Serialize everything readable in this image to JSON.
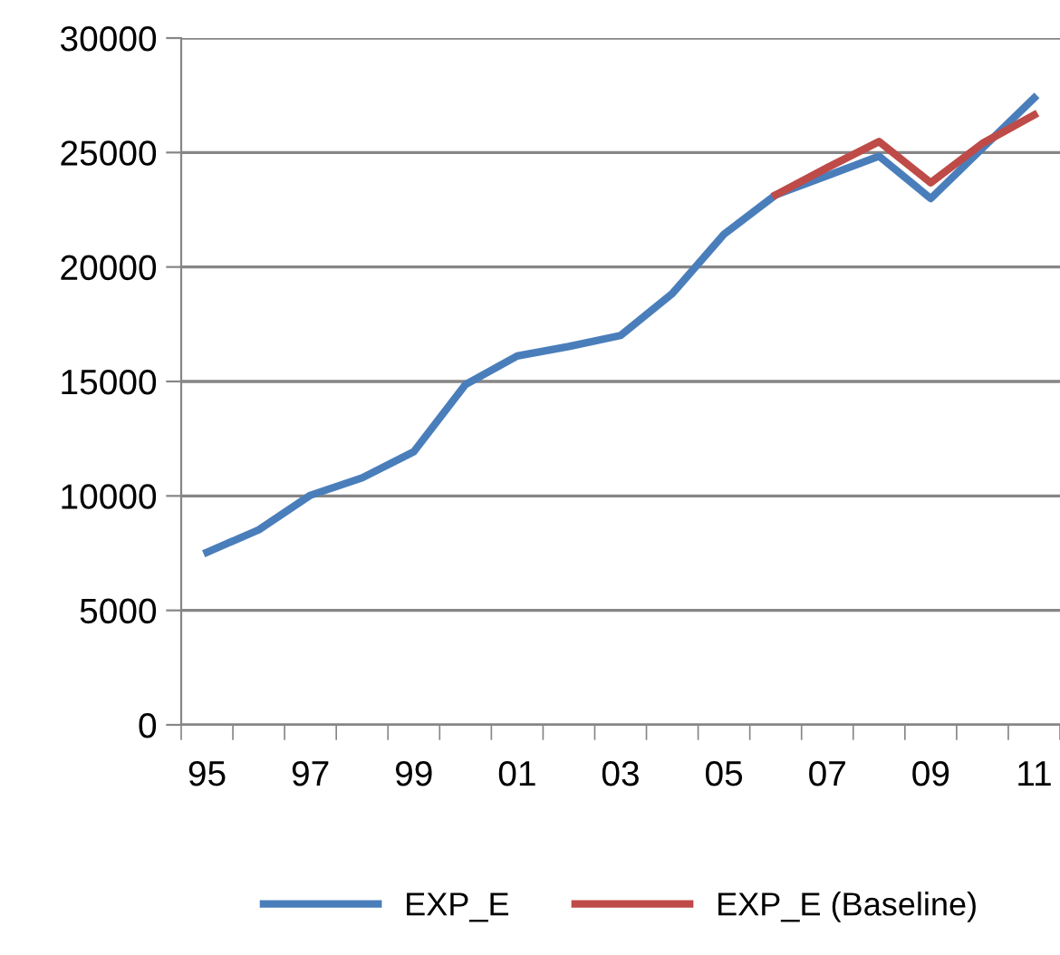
{
  "chart_data": {
    "type": "line",
    "categories": [
      "95",
      null,
      "97",
      null,
      "99",
      null,
      "01",
      null,
      "03",
      null,
      "05",
      null,
      "07",
      null,
      "09",
      null,
      "11"
    ],
    "series": [
      {
        "name": "EXP_E",
        "color": "#4a7ebb",
        "values": [
          7540,
          8520,
          10030,
          10790,
          11930,
          14870,
          16110,
          16530,
          17010,
          18840,
          21430,
          23150,
          23990,
          24840,
          22990,
          25190,
          27380
        ]
      },
      {
        "name": "EXP_E (Baseline)",
        "color": "#be4b48",
        "values": [
          null,
          null,
          null,
          null,
          null,
          null,
          null,
          null,
          null,
          null,
          null,
          23150,
          24340,
          25480,
          23680,
          25400,
          26640
        ]
      }
    ],
    "ylim": [
      0,
      30000
    ],
    "yticks": [
      0,
      5000,
      10000,
      15000,
      20000,
      25000,
      30000
    ],
    "grid": "y",
    "legend": "bottom",
    "marker": "none",
    "line_style": "solid"
  }
}
